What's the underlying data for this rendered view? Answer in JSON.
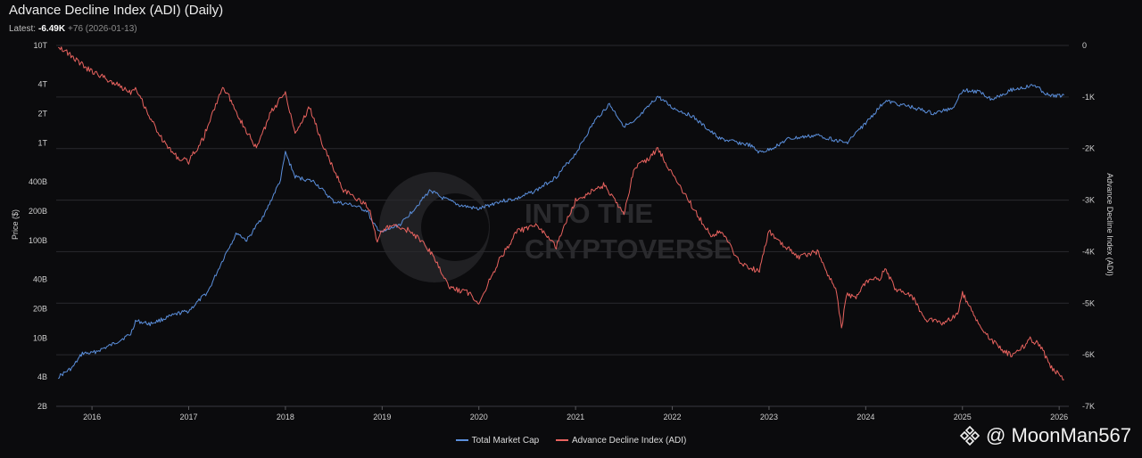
{
  "header": {
    "title": "Advance Decline Index (ADI) (Daily)",
    "latest_label": "Latest:",
    "latest_value": "-6.49K",
    "latest_change": "+76 (2026-01-13)"
  },
  "brand_watermark": {
    "line1": "INTO THE",
    "line2": "CRYPTOVERSE"
  },
  "social_watermark": {
    "text": "@ MoonMan567",
    "icon": "binance-diamond-icon"
  },
  "colors": {
    "market_cap": "#5b8fdc",
    "adi": "#e8635f",
    "background": "#0b0b0d",
    "grid": "#2a2a2e"
  },
  "chart_data": {
    "type": "line",
    "xlabel": "",
    "ylabel_left": "Price ($)",
    "ylabel_right": "Advance Decline Index (ADI)",
    "left_axis_scale": "log",
    "left_ylim": [
      2000000000,
      10000000000000
    ],
    "right_ylim": [
      -7000,
      0
    ],
    "xlim": [
      2015.63,
      2026.1
    ],
    "grid": "horizontal",
    "legend_position": "bottom-center",
    "x_ticks": [
      "2016",
      "2017",
      "2018",
      "2019",
      "2020",
      "2021",
      "2022",
      "2023",
      "2024",
      "2025",
      "2026"
    ],
    "left_ticks": [
      {
        "label": "10T",
        "value": 10000000000000
      },
      {
        "label": "4T",
        "value": 4000000000000
      },
      {
        "label": "2T",
        "value": 2000000000000
      },
      {
        "label": "1T",
        "value": 1000000000000
      },
      {
        "label": "400B",
        "value": 400000000000
      },
      {
        "label": "200B",
        "value": 200000000000
      },
      {
        "label": "100B",
        "value": 100000000000
      },
      {
        "label": "40B",
        "value": 40000000000
      },
      {
        "label": "20B",
        "value": 20000000000
      },
      {
        "label": "10B",
        "value": 10000000000
      },
      {
        "label": "4B",
        "value": 4000000000
      },
      {
        "label": "2B",
        "value": 2000000000
      }
    ],
    "right_ticks": [
      {
        "label": "0",
        "value": 0
      },
      {
        "label": "-1K",
        "value": -1000
      },
      {
        "label": "-2K",
        "value": -2000
      },
      {
        "label": "-3K",
        "value": -3000
      },
      {
        "label": "-4K",
        "value": -4000
      },
      {
        "label": "-5K",
        "value": -5000
      },
      {
        "label": "-6K",
        "value": -6000
      },
      {
        "label": "-7K",
        "value": -7000
      }
    ],
    "series": [
      {
        "name": "Total Market Cap",
        "axis": "left",
        "color": "#5b8fdc",
        "x": [
          2015.65,
          2015.8,
          2015.9,
          2016.0,
          2016.2,
          2016.4,
          2016.45,
          2016.6,
          2016.9,
          2017.0,
          2017.2,
          2017.4,
          2017.5,
          2017.6,
          2017.8,
          2017.95,
          2018.0,
          2018.1,
          2018.3,
          2018.5,
          2018.7,
          2018.85,
          2018.9,
          2019.0,
          2019.2,
          2019.5,
          2019.6,
          2019.8,
          2020.0,
          2020.2,
          2020.4,
          2020.6,
          2020.8,
          2021.0,
          2021.2,
          2021.35,
          2021.5,
          2021.6,
          2021.85,
          2022.0,
          2022.2,
          2022.4,
          2022.5,
          2022.8,
          2022.9,
          2023.0,
          2023.2,
          2023.5,
          2023.8,
          2024.0,
          2024.2,
          2024.5,
          2024.7,
          2024.9,
          2025.0,
          2025.2,
          2025.3,
          2025.5,
          2025.75,
          2025.9,
          2026.05
        ],
        "values": [
          4000000000,
          5000000000,
          7000000000,
          7000000000,
          8500000000,
          11000000000,
          15000000000,
          14000000000,
          18000000000,
          19000000000,
          30000000000,
          80000000000,
          120000000000,
          100000000000,
          200000000000,
          420000000000,
          800000000000,
          450000000000,
          400000000000,
          250000000000,
          230000000000,
          200000000000,
          150000000000,
          120000000000,
          150000000000,
          330000000000,
          280000000000,
          230000000000,
          210000000000,
          250000000000,
          270000000000,
          330000000000,
          450000000000,
          780000000000,
          1700000000000,
          2500000000000,
          1500000000000,
          1600000000000,
          3000000000000,
          2300000000000,
          1900000000000,
          1300000000000,
          1100000000000,
          950000000000,
          800000000000,
          850000000000,
          1100000000000,
          1200000000000,
          1000000000000,
          1600000000000,
          2700000000000,
          2300000000000,
          2000000000000,
          2300000000000,
          3500000000000,
          3300000000000,
          2800000000000,
          3500000000000,
          3900000000000,
          3000000000000,
          3100000000000
        ]
      },
      {
        "name": "Advance Decline Index (ADI)",
        "axis": "right",
        "color": "#e8635f",
        "x": [
          2015.65,
          2015.75,
          2015.85,
          2015.95,
          2016.2,
          2016.4,
          2016.45,
          2016.6,
          2016.75,
          2016.9,
          2017.0,
          2017.15,
          2017.35,
          2017.45,
          2017.55,
          2017.7,
          2017.85,
          2018.0,
          2018.1,
          2018.25,
          2018.4,
          2018.5,
          2018.6,
          2018.75,
          2018.85,
          2018.9,
          2018.95,
          2019.0,
          2019.1,
          2019.3,
          2019.5,
          2019.7,
          2019.9,
          2020.0,
          2020.2,
          2020.4,
          2020.6,
          2020.8,
          2021.0,
          2021.2,
          2021.3,
          2021.5,
          2021.6,
          2021.75,
          2021.85,
          2022.0,
          2022.2,
          2022.4,
          2022.5,
          2022.7,
          2022.9,
          2023.0,
          2023.1,
          2023.3,
          2023.5,
          2023.7,
          2023.75,
          2023.8,
          2023.9,
          2024.0,
          2024.15,
          2024.2,
          2024.3,
          2024.5,
          2024.6,
          2024.8,
          2024.95,
          2025.0,
          2025.2,
          2025.4,
          2025.5,
          2025.6,
          2025.7,
          2025.8,
          2025.9,
          2026.0,
          2026.05
        ],
        "values": [
          0,
          -150,
          -300,
          -450,
          -700,
          -900,
          -800,
          -1400,
          -1900,
          -2200,
          -2250,
          -1800,
          -800,
          -1100,
          -1500,
          -2000,
          -1300,
          -900,
          -1700,
          -1200,
          -2000,
          -2400,
          -2800,
          -3000,
          -3100,
          -3400,
          -3800,
          -3600,
          -3500,
          -3600,
          -4000,
          -4700,
          -4800,
          -5000,
          -4200,
          -3600,
          -3500,
          -3900,
          -3000,
          -2800,
          -2700,
          -3300,
          -2400,
          -2200,
          -2000,
          -2500,
          -3100,
          -3700,
          -3600,
          -4200,
          -4400,
          -3600,
          -3800,
          -4100,
          -4000,
          -4800,
          -5500,
          -4800,
          -4900,
          -4600,
          -4500,
          -4300,
          -4700,
          -4900,
          -5300,
          -5400,
          -5200,
          -4800,
          -5500,
          -5900,
          -6000,
          -5900,
          -5700,
          -5800,
          -6200,
          -6400,
          -6480
        ]
      }
    ]
  }
}
